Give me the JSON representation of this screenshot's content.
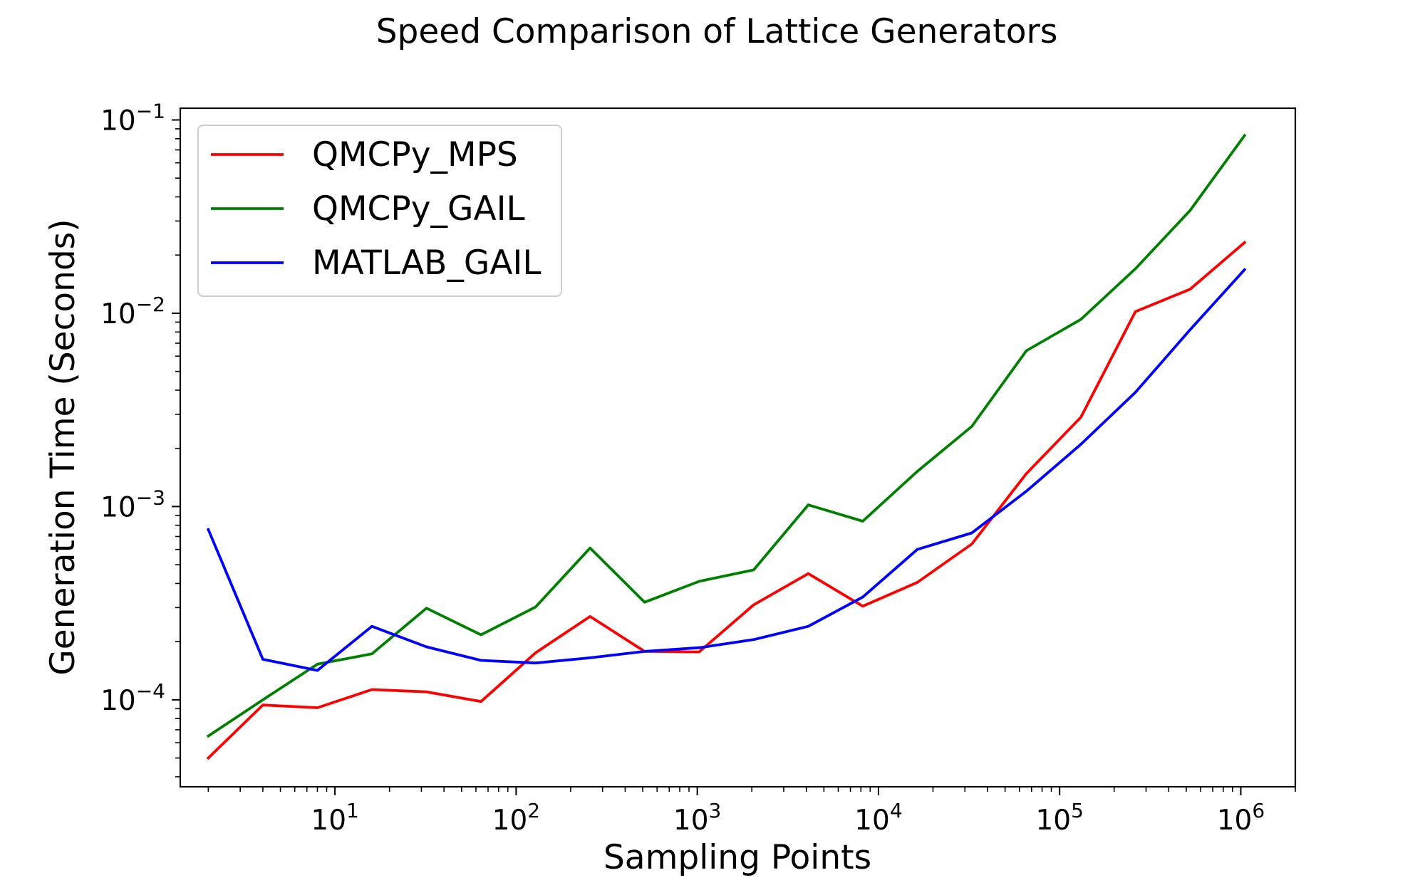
{
  "chart_data": {
    "type": "line",
    "title": "Speed Comparison of Lattice Generators",
    "xlabel": "Sampling Points",
    "ylabel": "Generation Time (Seconds)",
    "xscale": "log",
    "yscale": "log",
    "xlim": [
      1.4,
      2000000
    ],
    "ylim": [
      3.55e-05,
      0.115
    ],
    "grid": false,
    "legend_position": "top-left",
    "x": [
      2,
      4,
      8,
      16,
      32,
      64,
      128,
      256,
      512,
      1024,
      2048,
      4096,
      8192,
      16384,
      32768,
      65536,
      131072,
      262144,
      524288,
      1048576
    ],
    "series": [
      {
        "name": "QMCPy_MPS",
        "color": "#ff0000",
        "values": [
          5e-05,
          9.4e-05,
          9.1e-05,
          0.000113,
          0.00011,
          9.8e-05,
          0.000175,
          0.00027,
          0.000178,
          0.000177,
          0.00031,
          0.00045,
          0.000305,
          0.000405,
          0.00064,
          0.00148,
          0.0029,
          0.0102,
          0.0133,
          0.0232
        ]
      },
      {
        "name": "QMCPy_GAIL",
        "color": "#008000",
        "values": [
          6.5e-05,
          0.0001,
          0.000153,
          0.000173,
          0.000298,
          0.000217,
          0.000302,
          0.00061,
          0.00032,
          0.00041,
          0.00047,
          0.00102,
          0.00084,
          0.00152,
          0.0026,
          0.0064,
          0.0093,
          0.017,
          0.034,
          0.083
        ]
      },
      {
        "name": "MATLAB_GAIL",
        "color": "#0000ff",
        "values": [
          0.00076,
          0.000162,
          0.000142,
          0.00024,
          0.000188,
          0.00016,
          0.000155,
          0.000165,
          0.000178,
          0.000186,
          0.000205,
          0.00024,
          0.00034,
          0.0006,
          0.00073,
          0.0012,
          0.0021,
          0.0039,
          0.0082,
          0.0168
        ]
      }
    ],
    "x_ticks": [
      {
        "value": 10,
        "base": "10",
        "exp": "1"
      },
      {
        "value": 100,
        "base": "10",
        "exp": "2"
      },
      {
        "value": 1000,
        "base": "10",
        "exp": "3"
      },
      {
        "value": 10000,
        "base": "10",
        "exp": "4"
      },
      {
        "value": 100000,
        "base": "10",
        "exp": "5"
      },
      {
        "value": 1000000,
        "base": "10",
        "exp": "6"
      }
    ],
    "y_ticks": [
      {
        "value": 0.0001,
        "base": "10",
        "exp": "−4"
      },
      {
        "value": 0.001,
        "base": "10",
        "exp": "−3"
      },
      {
        "value": 0.01,
        "base": "10",
        "exp": "−2"
      },
      {
        "value": 0.1,
        "base": "10",
        "exp": "−1"
      }
    ]
  }
}
